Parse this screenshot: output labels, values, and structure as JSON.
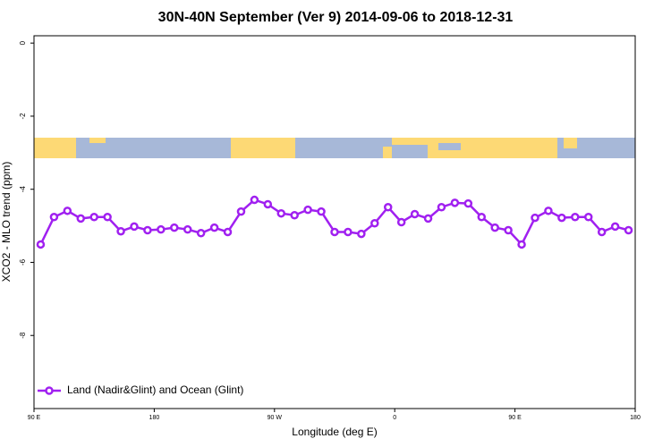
{
  "chart_data": {
    "type": "line",
    "title": "30N-40N September (Ver 9)   2014-09-06 to 2018-12-31",
    "x_label": "Longitude (deg E)",
    "y_label": "XCO2 - MLO trend (ppm)",
    "xlim": [
      90,
      540
    ],
    "ylim": [
      -10,
      0.2
    ],
    "xticks": [
      {
        "value": 90,
        "label": "90 E"
      },
      {
        "value": 180,
        "label": "180"
      },
      {
        "value": 270,
        "label": "90 W"
      },
      {
        "value": 360,
        "label": "0"
      },
      {
        "value": 450,
        "label": "90 E"
      },
      {
        "value": 540,
        "label": "180"
      }
    ],
    "yticks": [
      0,
      -2,
      -4,
      -6,
      -8
    ],
    "legend": "bottom-left",
    "x": [
      95,
      105,
      115,
      125,
      135,
      145,
      155,
      165,
      175,
      185,
      195,
      205,
      215,
      225,
      235,
      245,
      255,
      265,
      275,
      285,
      295,
      305,
      315,
      325,
      335,
      345,
      355,
      365,
      375,
      385,
      395,
      405,
      415,
      425,
      435,
      445,
      455,
      465,
      475,
      485,
      495,
      505,
      515,
      525,
      535
    ],
    "series": [
      {
        "name": "Land (Nadir&Glint) and Ocean (Glint)",
        "color": "#a020f0",
        "values": [
          -5.51,
          -4.76,
          -4.59,
          -4.8,
          -4.76,
          -4.76,
          -5.15,
          -5.02,
          -5.12,
          -5.1,
          -5.05,
          -5.1,
          -5.2,
          -5.05,
          -5.17,
          -4.61,
          -4.29,
          -4.41,
          -4.66,
          -4.71,
          -4.56,
          -4.61,
          -5.17,
          -5.17,
          -5.22,
          -4.93,
          -4.49,
          -4.9,
          -4.68,
          -4.8,
          -4.49,
          -4.37,
          -4.39,
          -4.76,
          -5.05,
          -5.12,
          -5.51,
          -4.78,
          -4.59,
          -4.78,
          -4.76,
          -4.76,
          -5.17,
          -5.02,
          -5.12
        ]
      }
    ]
  }
}
